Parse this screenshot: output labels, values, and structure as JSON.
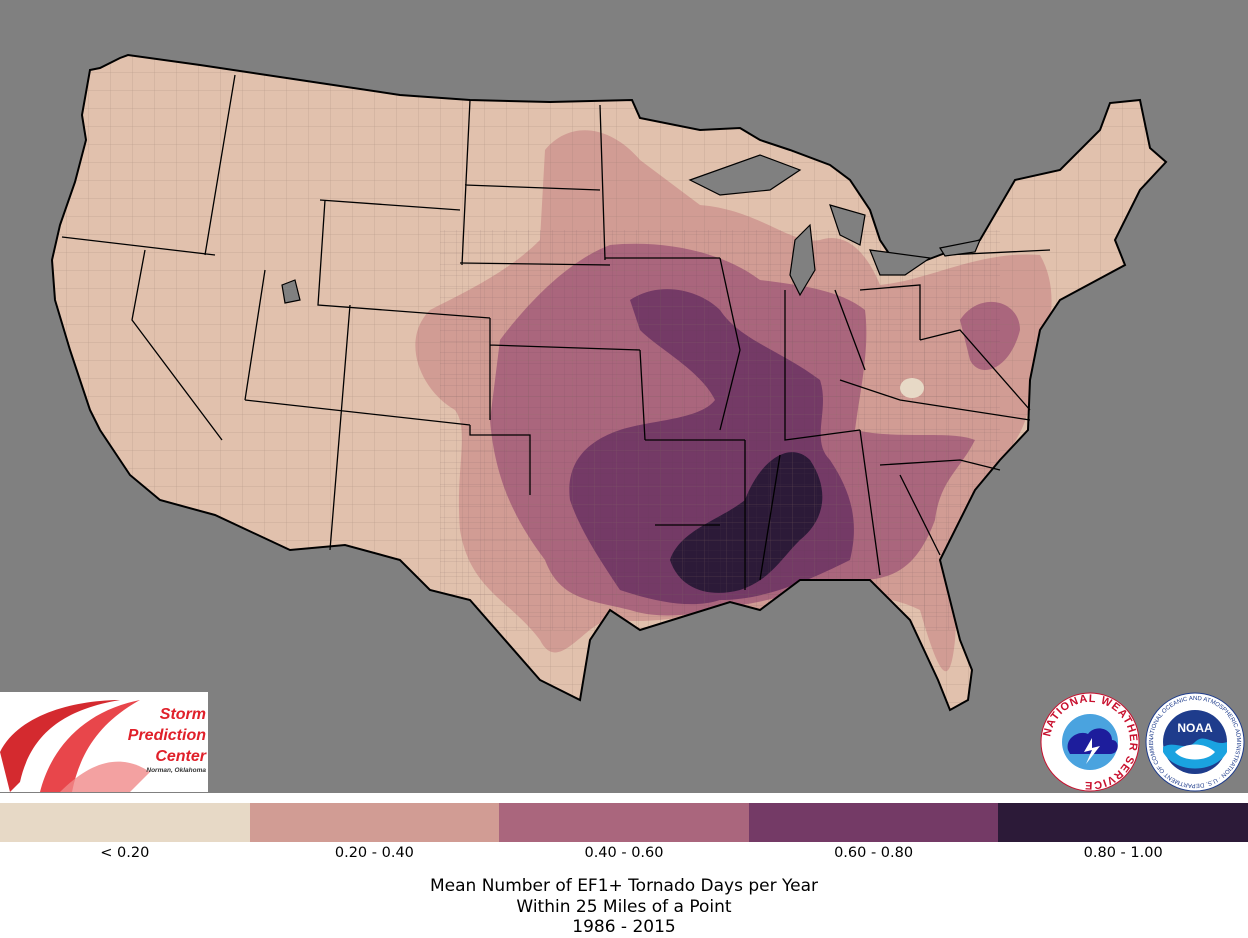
{
  "map": {
    "background_color": "#808080",
    "land_color": "#e1c1ad",
    "boundary_color": "#000000"
  },
  "legend": {
    "items": [
      {
        "label": "< 0.20",
        "color": "#e7d9c6"
      },
      {
        "label": "0.20 - 0.40",
        "color": "#d19c94"
      },
      {
        "label": "0.40 - 0.60",
        "color": "#aa667d"
      },
      {
        "label": "0.60 - 0.80",
        "color": "#743a66"
      },
      {
        "label": "0.80 - 1.00",
        "color": "#2c1a38"
      }
    ]
  },
  "caption": {
    "line1": "Mean Number of EF1+ Tornado Days per Year",
    "line2": "Within 25 Miles of a Point",
    "line3": "1986 - 2015"
  },
  "logos": {
    "spc": {
      "line1": "Storm",
      "line2": "Prediction",
      "line3": "Center",
      "location": "Norman, Oklahoma"
    },
    "nws": {
      "text": "NATIONAL WEATHER SERVICE"
    },
    "noaa": {
      "text": "NOAA",
      "ring": "NATIONAL OCEANIC AND ATMOSPHERIC ADMINISTRATION · U.S. DEPARTMENT OF COMMERCE"
    }
  }
}
